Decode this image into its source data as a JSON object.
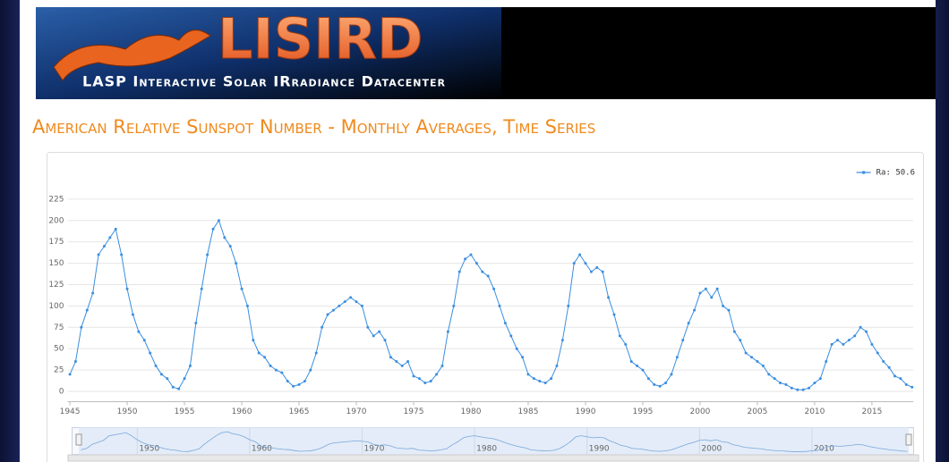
{
  "header": {
    "logo": "LISIRD",
    "tagline": "LASP Interactive Solar IRradiance Datacenter"
  },
  "chart_data": {
    "type": "line",
    "title": "American Relative Sunspot Number - Monthly Averages, Time Series",
    "x": [
      1945.0,
      1945.5,
      1946.0,
      1946.5,
      1947.0,
      1947.5,
      1948.0,
      1948.5,
      1949.0,
      1949.5,
      1950.0,
      1950.5,
      1951.0,
      1951.5,
      1952.0,
      1952.5,
      1953.0,
      1953.5,
      1954.0,
      1954.5,
      1955.0,
      1955.5,
      1956.0,
      1956.5,
      1957.0,
      1957.5,
      1958.0,
      1958.5,
      1959.0,
      1959.5,
      1960.0,
      1960.5,
      1961.0,
      1961.5,
      1962.0,
      1962.5,
      1963.0,
      1963.5,
      1964.0,
      1964.5,
      1965.0,
      1965.5,
      1966.0,
      1966.5,
      1967.0,
      1967.5,
      1968.0,
      1968.5,
      1969.0,
      1969.5,
      1970.0,
      1970.5,
      1971.0,
      1971.5,
      1972.0,
      1972.5,
      1973.0,
      1973.5,
      1974.0,
      1974.5,
      1975.0,
      1975.5,
      1976.0,
      1976.5,
      1977.0,
      1977.5,
      1978.0,
      1978.5,
      1979.0,
      1979.5,
      1980.0,
      1980.5,
      1981.0,
      1981.5,
      1982.0,
      1982.5,
      1983.0,
      1983.5,
      1984.0,
      1984.5,
      1985.0,
      1985.5,
      1986.0,
      1986.5,
      1987.0,
      1987.5,
      1988.0,
      1988.5,
      1989.0,
      1989.5,
      1990.0,
      1990.5,
      1991.0,
      1991.5,
      1992.0,
      1992.5,
      1993.0,
      1993.5,
      1994.0,
      1994.5,
      1995.0,
      1995.5,
      1996.0,
      1996.5,
      1997.0,
      1997.5,
      1998.0,
      1998.5,
      1999.0,
      1999.5,
      2000.0,
      2000.5,
      2001.0,
      2001.5,
      2002.0,
      2002.5,
      2003.0,
      2003.5,
      2004.0,
      2004.5,
      2005.0,
      2005.5,
      2006.0,
      2006.5,
      2007.0,
      2007.5,
      2008.0,
      2008.5,
      2009.0,
      2009.5,
      2010.0,
      2010.5,
      2011.0,
      2011.5,
      2012.0,
      2012.5,
      2013.0,
      2013.5,
      2014.0,
      2014.5,
      2015.0,
      2015.5,
      2016.0,
      2016.5,
      2017.0,
      2017.5,
      2018.0,
      2018.5
    ],
    "series": [
      {
        "name": "Ra: 50.6",
        "color": "#3a8ee0",
        "values": [
          20,
          35,
          75,
          95,
          115,
          160,
          170,
          180,
          190,
          160,
          120,
          90,
          70,
          60,
          45,
          30,
          20,
          15,
          5,
          3,
          15,
          30,
          80,
          120,
          160,
          190,
          200,
          180,
          170,
          150,
          120,
          100,
          60,
          45,
          40,
          30,
          25,
          22,
          12,
          6,
          8,
          12,
          25,
          45,
          75,
          90,
          95,
          100,
          105,
          110,
          105,
          100,
          75,
          65,
          70,
          60,
          40,
          35,
          30,
          35,
          18,
          15,
          10,
          12,
          20,
          30,
          70,
          100,
          140,
          155,
          160,
          150,
          140,
          135,
          120,
          100,
          80,
          65,
          50,
          40,
          20,
          15,
          12,
          10,
          15,
          30,
          60,
          100,
          150,
          160,
          150,
          140,
          145,
          140,
          110,
          90,
          65,
          55,
          35,
          30,
          25,
          15,
          8,
          6,
          10,
          20,
          40,
          60,
          80,
          95,
          115,
          120,
          110,
          120,
          100,
          95,
          70,
          60,
          45,
          40,
          35,
          30,
          20,
          15,
          10,
          8,
          4,
          2,
          2,
          4,
          10,
          15,
          35,
          55,
          60,
          55,
          60,
          65,
          75,
          70,
          55,
          45,
          35,
          28,
          18,
          15,
          8,
          5
        ]
      }
    ],
    "xlim": [
      1944.8,
      2018.6
    ],
    "ylim": [
      -12,
      237
    ],
    "xticks": [
      1945,
      1950,
      1955,
      1960,
      1965,
      1970,
      1975,
      1980,
      1985,
      1990,
      1995,
      2000,
      2005,
      2010,
      2015
    ],
    "yticks": [
      0,
      25,
      50,
      75,
      100,
      125,
      150,
      175,
      200,
      225
    ],
    "navigator_xticks": [
      1950,
      1960,
      1970,
      1980,
      1990,
      2000,
      2010
    ],
    "grid": true,
    "legend": "top-right"
  }
}
